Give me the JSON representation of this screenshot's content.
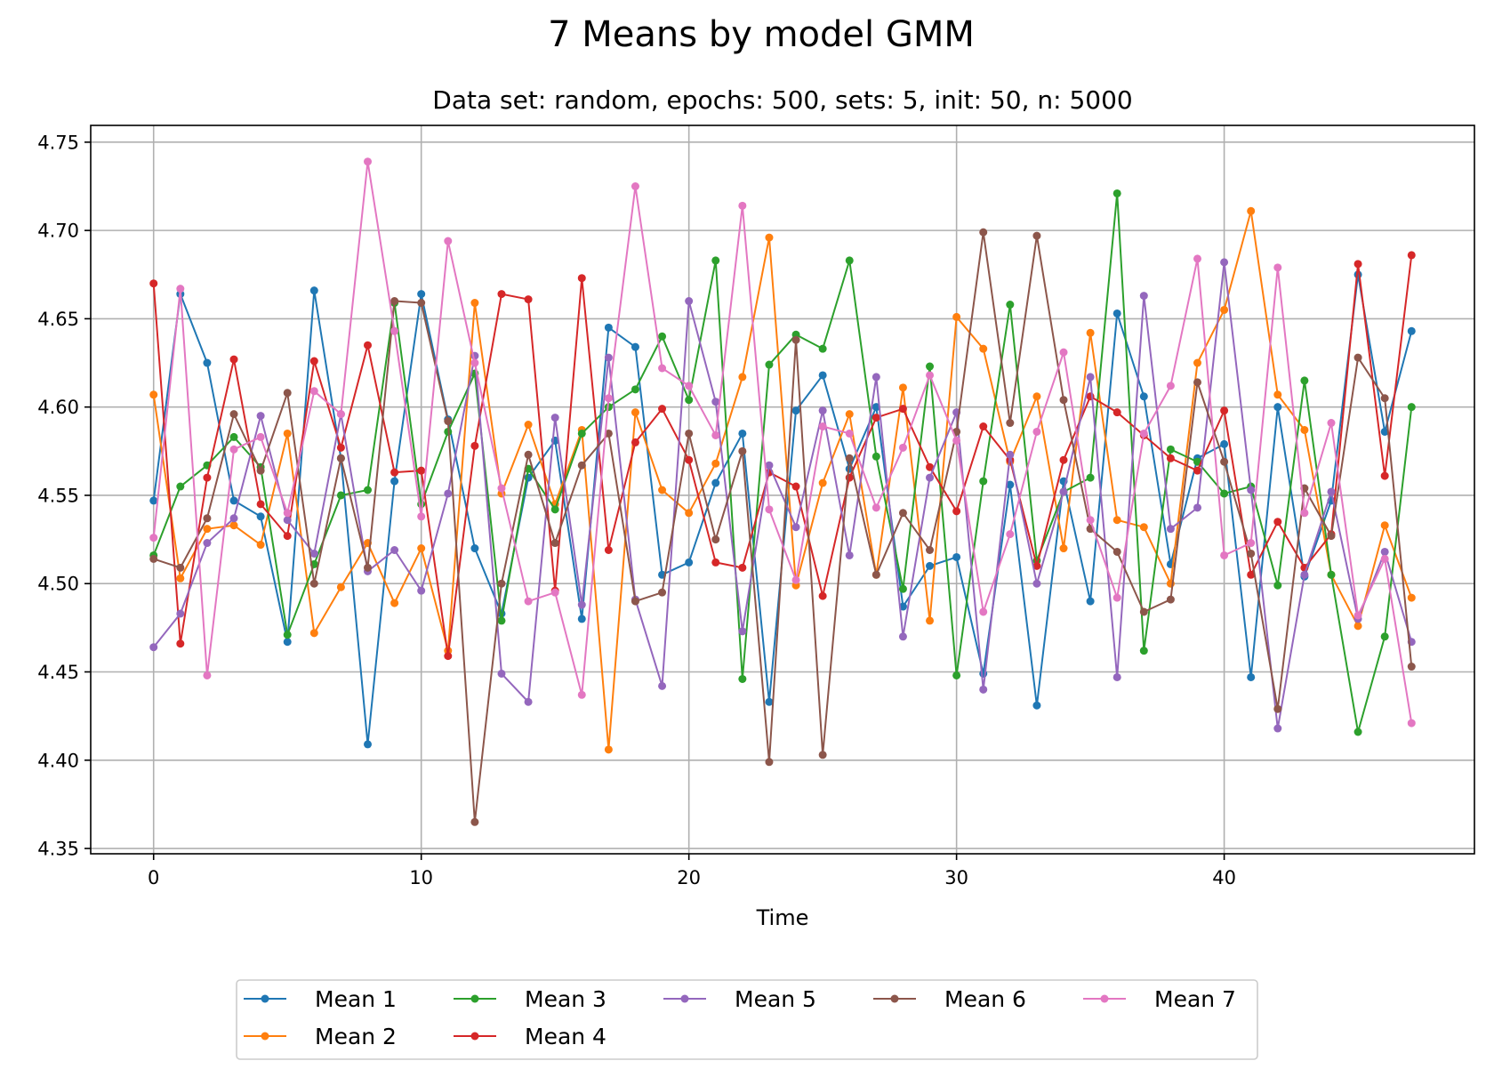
{
  "chart_data": {
    "type": "line",
    "suptitle": "7 Means by model GMM",
    "title": "Data set: random, epochs: 500, sets: 5, init: 50, n: 5000",
    "xlabel": "Time",
    "ylabel": "",
    "xlim": [
      -2.35,
      49.35
    ],
    "ylim": [
      4.347,
      4.7595
    ],
    "xticks": [
      0,
      10,
      20,
      30,
      40
    ],
    "yticks": [
      4.35,
      4.4,
      4.45,
      4.5,
      4.55,
      4.6,
      4.65,
      4.7,
      4.75
    ],
    "ytick_labels": [
      "4.35",
      "4.40",
      "4.45",
      "4.50",
      "4.55",
      "4.60",
      "4.65",
      "4.70",
      "4.75"
    ],
    "grid": true,
    "legend": {
      "position": "bottom-center",
      "columns": 5
    },
    "x": [
      0,
      1,
      2,
      3,
      4,
      5,
      6,
      7,
      8,
      9,
      10,
      11,
      12,
      13,
      14,
      15,
      16,
      17,
      18,
      19,
      20,
      21,
      22,
      23,
      24,
      25,
      26,
      27,
      28,
      29,
      30,
      31,
      32,
      33,
      34,
      35,
      36,
      37,
      38,
      39,
      40,
      41,
      42,
      43,
      44,
      45,
      46,
      47
    ],
    "series": [
      {
        "name": "Mean 1",
        "color": "#1f77b4",
        "values": [
          4.547,
          4.664,
          4.625,
          4.547,
          4.538,
          4.467,
          4.666,
          4.571,
          4.409,
          4.558,
          4.664,
          4.593,
          4.52,
          4.483,
          4.56,
          4.581,
          4.48,
          4.645,
          4.634,
          4.505,
          4.512,
          4.557,
          4.585,
          4.433,
          4.598,
          4.618,
          4.565,
          4.6,
          4.487,
          4.51,
          4.515,
          4.449,
          4.556,
          4.431,
          4.558,
          4.49,
          4.653,
          4.606,
          4.511,
          4.571,
          4.579,
          4.447,
          4.6,
          4.504,
          4.547,
          4.675,
          4.586,
          4.643
        ]
      },
      {
        "name": "Mean 2",
        "color": "#ff7f0e",
        "values": [
          4.607,
          4.503,
          4.531,
          4.533,
          4.522,
          4.585,
          4.472,
          4.498,
          4.523,
          4.489,
          4.52,
          4.462,
          4.659,
          4.551,
          4.59,
          4.545,
          4.587,
          4.406,
          4.597,
          4.553,
          4.54,
          4.568,
          4.617,
          4.696,
          4.499,
          4.557,
          4.596,
          4.505,
          4.611,
          4.479,
          4.651,
          4.633,
          4.569,
          4.606,
          4.52,
          4.642,
          4.536,
          4.532,
          4.5,
          4.625,
          4.655,
          4.711,
          4.607,
          4.587,
          4.505,
          4.476,
          4.533,
          4.492
        ]
      },
      {
        "name": "Mean 3",
        "color": "#2ca02c",
        "values": [
          4.516,
          4.555,
          4.567,
          4.583,
          4.566,
          4.471,
          4.511,
          4.55,
          4.553,
          4.659,
          4.545,
          4.586,
          4.619,
          4.479,
          4.565,
          4.542,
          4.585,
          4.6,
          4.61,
          4.64,
          4.604,
          4.683,
          4.446,
          4.624,
          4.641,
          4.633,
          4.683,
          4.572,
          4.497,
          4.623,
          4.448,
          4.558,
          4.658,
          4.513,
          4.552,
          4.56,
          4.721,
          4.462,
          4.576,
          4.569,
          4.551,
          4.555,
          4.499,
          4.615,
          4.505,
          4.416,
          4.47,
          4.6
        ]
      },
      {
        "name": "Mean 4",
        "color": "#d62728",
        "values": [
          4.67,
          4.466,
          4.56,
          4.627,
          4.545,
          4.527,
          4.626,
          4.577,
          4.635,
          4.563,
          4.564,
          4.459,
          4.578,
          4.664,
          4.661,
          4.496,
          4.673,
          4.519,
          4.58,
          4.599,
          4.57,
          4.512,
          4.509,
          4.563,
          4.555,
          4.493,
          4.56,
          4.594,
          4.599,
          4.566,
          4.541,
          4.589,
          4.57,
          4.51,
          4.57,
          4.606,
          4.597,
          4.584,
          4.571,
          4.564,
          4.598,
          4.505,
          4.535,
          4.509,
          4.528,
          4.681,
          4.561,
          4.686
        ]
      },
      {
        "name": "Mean 5",
        "color": "#9467bd",
        "values": [
          4.464,
          4.483,
          4.523,
          4.537,
          4.595,
          4.536,
          4.517,
          4.596,
          4.507,
          4.519,
          4.496,
          4.551,
          4.629,
          4.449,
          4.433,
          4.594,
          4.488,
          4.628,
          4.491,
          4.442,
          4.66,
          4.603,
          4.473,
          4.567,
          4.532,
          4.598,
          4.516,
          4.617,
          4.47,
          4.56,
          4.597,
          4.44,
          4.573,
          4.5,
          4.552,
          4.617,
          4.447,
          4.663,
          4.531,
          4.543,
          4.682,
          4.553,
          4.418,
          4.505,
          4.552,
          4.48,
          4.518,
          4.467
        ]
      },
      {
        "name": "Mean 6",
        "color": "#8c564b",
        "values": [
          4.514,
          4.509,
          4.537,
          4.596,
          4.564,
          4.608,
          4.5,
          4.571,
          4.509,
          4.66,
          4.659,
          4.592,
          4.365,
          4.5,
          4.573,
          4.523,
          4.567,
          4.585,
          4.49,
          4.495,
          4.585,
          4.525,
          4.575,
          4.399,
          4.638,
          4.403,
          4.571,
          4.505,
          4.54,
          4.519,
          4.586,
          4.699,
          4.591,
          4.697,
          4.604,
          4.531,
          4.518,
          4.484,
          4.491,
          4.614,
          4.569,
          4.517,
          4.429,
          4.554,
          4.527,
          4.628,
          4.605,
          4.453
        ]
      },
      {
        "name": "Mean 7",
        "color": "#e377c2",
        "values": [
          4.526,
          4.667,
          4.448,
          4.576,
          4.583,
          4.54,
          4.609,
          4.596,
          4.739,
          4.643,
          4.538,
          4.694,
          4.625,
          4.554,
          4.49,
          4.495,
          4.437,
          4.605,
          4.725,
          4.622,
          4.612,
          4.584,
          4.714,
          4.542,
          4.502,
          4.589,
          4.585,
          4.543,
          4.577,
          4.618,
          4.581,
          4.484,
          4.528,
          4.586,
          4.631,
          4.536,
          4.492,
          4.585,
          4.612,
          4.684,
          4.516,
          4.523,
          4.679,
          4.54,
          4.591,
          4.482,
          4.514,
          4.421
        ]
      }
    ]
  }
}
